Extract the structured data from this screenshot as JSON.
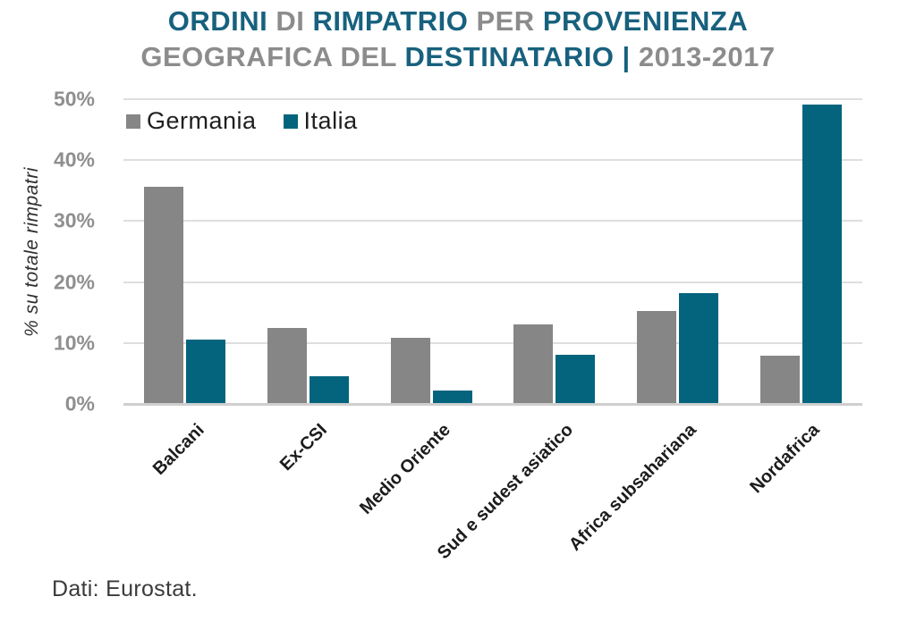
{
  "header": {
    "title_line1_segments": [
      {
        "text": "ORDINI ",
        "tone": "accent"
      },
      {
        "text": "DI ",
        "tone": "muted"
      },
      {
        "text": "RIMPATRIO ",
        "tone": "accent"
      },
      {
        "text": "PER ",
        "tone": "muted"
      },
      {
        "text": "PROVENIENZA",
        "tone": "accent"
      }
    ],
    "title_line2_segments": [
      {
        "text": "GEOGRAFICA DEL ",
        "tone": "muted"
      },
      {
        "text": "DESTINATARIO ",
        "tone": "accent"
      },
      {
        "text": "| ",
        "tone": "accent"
      },
      {
        "text": "2013-2017",
        "tone": "muted"
      }
    ]
  },
  "colors": {
    "accent": "#17617E",
    "muted": "#8C8C8C",
    "bar_germania": "#868686",
    "bar_italia": "#05647D",
    "grid": "#DEDEDE",
    "axis": "#CFCFCF",
    "ytick_text": "#8F8F8F",
    "xlabel_text": "#1C1C1C",
    "legend_text": "#1F1F1F",
    "ylabel_text": "#303030",
    "source_text": "#3A3A3A"
  },
  "chart_data": {
    "type": "bar",
    "title": "ORDINI DI RIMPATRIO PER PROVENIENZA GEOGRAFICA DEL DESTINATARIO | 2013-2017",
    "categories": [
      "Balcani",
      "Ex-CSI",
      "Medio Oriente",
      "Sud e sudest asiatico",
      "Africa subsahariana",
      "Nordafrica"
    ],
    "series": [
      {
        "name": "Germania",
        "color": "#868686",
        "values": [
          35.7,
          12.5,
          10.8,
          13.0,
          15.3,
          7.9
        ]
      },
      {
        "name": "Italia",
        "color": "#05647D",
        "values": [
          10.5,
          4.6,
          2.2,
          8.0,
          18.2,
          49.1
        ]
      }
    ],
    "ylabel": "% su totale rimpatri",
    "xlabel": "",
    "ylim": [
      0,
      50
    ],
    "yticks": [
      {
        "value": 0,
        "label": "0%"
      },
      {
        "value": 10,
        "label": "10%"
      },
      {
        "value": 20,
        "label": "20%"
      },
      {
        "value": 30,
        "label": "30%"
      },
      {
        "value": 40,
        "label": "40%"
      },
      {
        "value": 50,
        "label": "50%"
      }
    ],
    "grid": true,
    "legend_position": "top-left"
  },
  "source": {
    "text": "Dati: Eurostat."
  }
}
